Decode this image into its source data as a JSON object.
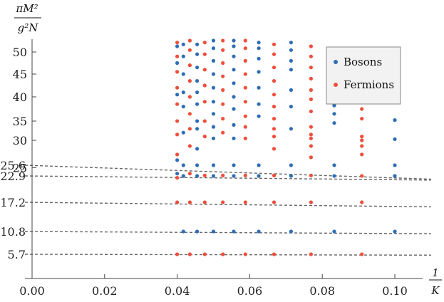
{
  "chart_data": {
    "type": "scatter",
    "xlabel_num": "1",
    "xlabel_den": "K",
    "ylabel_num": "πM²",
    "ylabel_den": "g²N",
    "xlim": [
      0.0,
      0.11
    ],
    "ylim": [
      0,
      52
    ],
    "y_scale_note": "custom non-linear y axis",
    "x_ticks": [
      "0.00",
      "0.02",
      "0.04",
      "0.06",
      "0.08",
      "0.10"
    ],
    "y_ticks": [
      "25",
      "30",
      "35",
      "40",
      "45",
      "50"
    ],
    "grid": false,
    "legend_position": "top-right",
    "colors": {
      "bosons": "#2f6db5",
      "fermions": "#ef4f3c",
      "fit_line": "#666666"
    },
    "series": [
      {
        "name": "Bosons",
        "points": [
          [
            0.0417,
            10.8
          ],
          [
            0.0455,
            10.8
          ],
          [
            0.05,
            10.8
          ],
          [
            0.0556,
            10.8
          ],
          [
            0.0625,
            10.8
          ],
          [
            0.0714,
            10.8
          ],
          [
            0.0833,
            10.8
          ],
          [
            0.1,
            10.8
          ],
          [
            0.0417,
            22.9
          ],
          [
            0.0455,
            22.9
          ],
          [
            0.05,
            22.9
          ],
          [
            0.0556,
            22.9
          ],
          [
            0.0625,
            22.9
          ],
          [
            0.0714,
            22.9
          ],
          [
            0.0833,
            22.9
          ],
          [
            0.1,
            22.9
          ],
          [
            0.0417,
            25.6
          ],
          [
            0.0455,
            25.6
          ],
          [
            0.05,
            25.6
          ],
          [
            0.0556,
            25.6
          ],
          [
            0.0625,
            25.6
          ],
          [
            0.0714,
            25.6
          ],
          [
            0.0833,
            25.6
          ],
          [
            0.1,
            25.6
          ],
          [
            0.1,
            30.3
          ],
          [
            0.1,
            35.2
          ],
          [
            0.0833,
            34.5
          ],
          [
            0.0833,
            36.5
          ],
          [
            0.0833,
            38.2
          ],
          [
            0.0833,
            38.5
          ],
          [
            0.0714,
            33.0
          ],
          [
            0.0714,
            38.0
          ],
          [
            0.0714,
            41.5
          ],
          [
            0.0714,
            46.0
          ],
          [
            0.0714,
            48.0
          ],
          [
            0.0714,
            50.5
          ],
          [
            0.0714,
            52.5
          ],
          [
            0.0625,
            36.0
          ],
          [
            0.0625,
            38.5
          ],
          [
            0.0625,
            42.0
          ],
          [
            0.0625,
            45.5
          ],
          [
            0.0625,
            48.5
          ],
          [
            0.0625,
            51.0
          ],
          [
            0.0625,
            52.5
          ],
          [
            0.0556,
            30.5
          ],
          [
            0.0556,
            34.0
          ],
          [
            0.0556,
            37.5
          ],
          [
            0.0556,
            40.0
          ],
          [
            0.0556,
            43.0
          ],
          [
            0.0556,
            46.0
          ],
          [
            0.0556,
            49.0
          ],
          [
            0.0556,
            51.5
          ],
          [
            0.0556,
            53.0
          ],
          [
            0.05,
            30.5
          ],
          [
            0.05,
            33.5
          ],
          [
            0.05,
            36.5
          ],
          [
            0.05,
            39.0
          ],
          [
            0.05,
            42.0
          ],
          [
            0.05,
            45.0
          ],
          [
            0.05,
            48.0
          ],
          [
            0.05,
            51.0
          ],
          [
            0.05,
            53.0
          ],
          [
            0.0455,
            28.5
          ],
          [
            0.0455,
            33.0
          ],
          [
            0.0455,
            35.0
          ],
          [
            0.0455,
            38.5
          ],
          [
            0.0455,
            41.0
          ],
          [
            0.0455,
            43.5
          ],
          [
            0.0455,
            46.5
          ],
          [
            0.0455,
            49.5
          ],
          [
            0.0455,
            52.0
          ],
          [
            0.0417,
            32.0
          ],
          [
            0.0417,
            38.0
          ],
          [
            0.0417,
            41.0
          ],
          [
            0.0417,
            45.0
          ],
          [
            0.0417,
            49.0
          ],
          [
            0.0417,
            52.0
          ],
          [
            0.04,
            23.5
          ],
          [
            0.04,
            26.5
          ],
          [
            0.04,
            40.5
          ],
          [
            0.04,
            47.5
          ],
          [
            0.04,
            51.5
          ]
        ]
      },
      {
        "name": "Fermions",
        "points": [
          [
            0.04,
            5.7
          ],
          [
            0.0435,
            5.7
          ],
          [
            0.0476,
            5.7
          ],
          [
            0.0526,
            5.7
          ],
          [
            0.0588,
            5.7
          ],
          [
            0.0667,
            5.7
          ],
          [
            0.0769,
            5.7
          ],
          [
            0.0909,
            5.7
          ],
          [
            0.04,
            17.2
          ],
          [
            0.0435,
            17.2
          ],
          [
            0.0476,
            17.2
          ],
          [
            0.0526,
            17.2
          ],
          [
            0.0588,
            17.2
          ],
          [
            0.0667,
            17.2
          ],
          [
            0.0769,
            17.2
          ],
          [
            0.0909,
            17.2
          ],
          [
            0.04,
            22.5
          ],
          [
            0.0435,
            23.5
          ],
          [
            0.0476,
            23.0
          ],
          [
            0.0526,
            23.0
          ],
          [
            0.0588,
            23.0
          ],
          [
            0.0667,
            23.0
          ],
          [
            0.0769,
            23.0
          ],
          [
            0.0909,
            22.9
          ],
          [
            0.0909,
            27.5
          ],
          [
            0.0909,
            29.0
          ],
          [
            0.0909,
            30.0
          ],
          [
            0.0909,
            31.0
          ],
          [
            0.0909,
            35.5
          ],
          [
            0.0909,
            37.5
          ],
          [
            0.0769,
            27.0
          ],
          [
            0.0769,
            29.0
          ],
          [
            0.0769,
            30.5
          ],
          [
            0.0769,
            31.5
          ],
          [
            0.0769,
            33.5
          ],
          [
            0.0769,
            37.0
          ],
          [
            0.0769,
            39.5
          ],
          [
            0.0769,
            41.5
          ],
          [
            0.0769,
            44.0
          ],
          [
            0.0769,
            46.5
          ],
          [
            0.0769,
            49.0
          ],
          [
            0.0769,
            51.5
          ],
          [
            0.0667,
            28.5
          ],
          [
            0.0667,
            31.0
          ],
          [
            0.0667,
            33.0
          ],
          [
            0.0667,
            35.5
          ],
          [
            0.0667,
            38.0
          ],
          [
            0.0667,
            40.5
          ],
          [
            0.0667,
            43.5
          ],
          [
            0.0667,
            46.5
          ],
          [
            0.0667,
            49.5
          ],
          [
            0.0667,
            52.0
          ],
          [
            0.0588,
            30.5
          ],
          [
            0.0588,
            33.5
          ],
          [
            0.0588,
            36.0
          ],
          [
            0.0588,
            39.0
          ],
          [
            0.0588,
            42.0
          ],
          [
            0.0588,
            45.0
          ],
          [
            0.0588,
            48.0
          ],
          [
            0.0588,
            51.0
          ],
          [
            0.0588,
            53.0
          ],
          [
            0.0526,
            32.0
          ],
          [
            0.0526,
            35.5
          ],
          [
            0.0526,
            38.5
          ],
          [
            0.0526,
            41.5
          ],
          [
            0.0526,
            44.5
          ],
          [
            0.0526,
            47.5
          ],
          [
            0.0526,
            50.5
          ],
          [
            0.0526,
            53.0
          ],
          [
            0.0476,
            31.0
          ],
          [
            0.0476,
            35.0
          ],
          [
            0.0476,
            39.0
          ],
          [
            0.0476,
            42.5
          ],
          [
            0.0476,
            46.0
          ],
          [
            0.0476,
            49.5
          ],
          [
            0.0476,
            52.5
          ],
          [
            0.0435,
            29.0
          ],
          [
            0.0435,
            33.0
          ],
          [
            0.0435,
            36.5
          ],
          [
            0.0435,
            40.0
          ],
          [
            0.0435,
            43.5
          ],
          [
            0.0435,
            47.0
          ],
          [
            0.0435,
            50.5
          ],
          [
            0.0435,
            53.0
          ],
          [
            0.04,
            27.5
          ],
          [
            0.04,
            31.5
          ],
          [
            0.04,
            35.0
          ],
          [
            0.04,
            38.5
          ],
          [
            0.04,
            42.0
          ],
          [
            0.04,
            45.5
          ],
          [
            0.04,
            49.0
          ],
          [
            0.04,
            52.5
          ]
        ]
      }
    ],
    "fit_lines": [
      {
        "intercept": 25.6,
        "label": "25.6",
        "color": "#2f6db5",
        "end_y_at_x_0.11": 22.2
      },
      {
        "intercept": 22.9,
        "label": "22.9",
        "color": "#2f6db5",
        "end_y_at_x_0.11": 22.0
      },
      {
        "intercept": 17.2,
        "label": "17.2",
        "color": "#ef4f3c",
        "end_y_at_x_0.11": 16.2
      },
      {
        "intercept": 10.8,
        "label": "10.8",
        "color": "#2f6db5",
        "end_y_at_x_0.11": 10.3
      },
      {
        "intercept": 5.7,
        "label": "5.7",
        "color": "#ef4f3c",
        "end_y_at_x_0.11": 5.5
      }
    ]
  }
}
